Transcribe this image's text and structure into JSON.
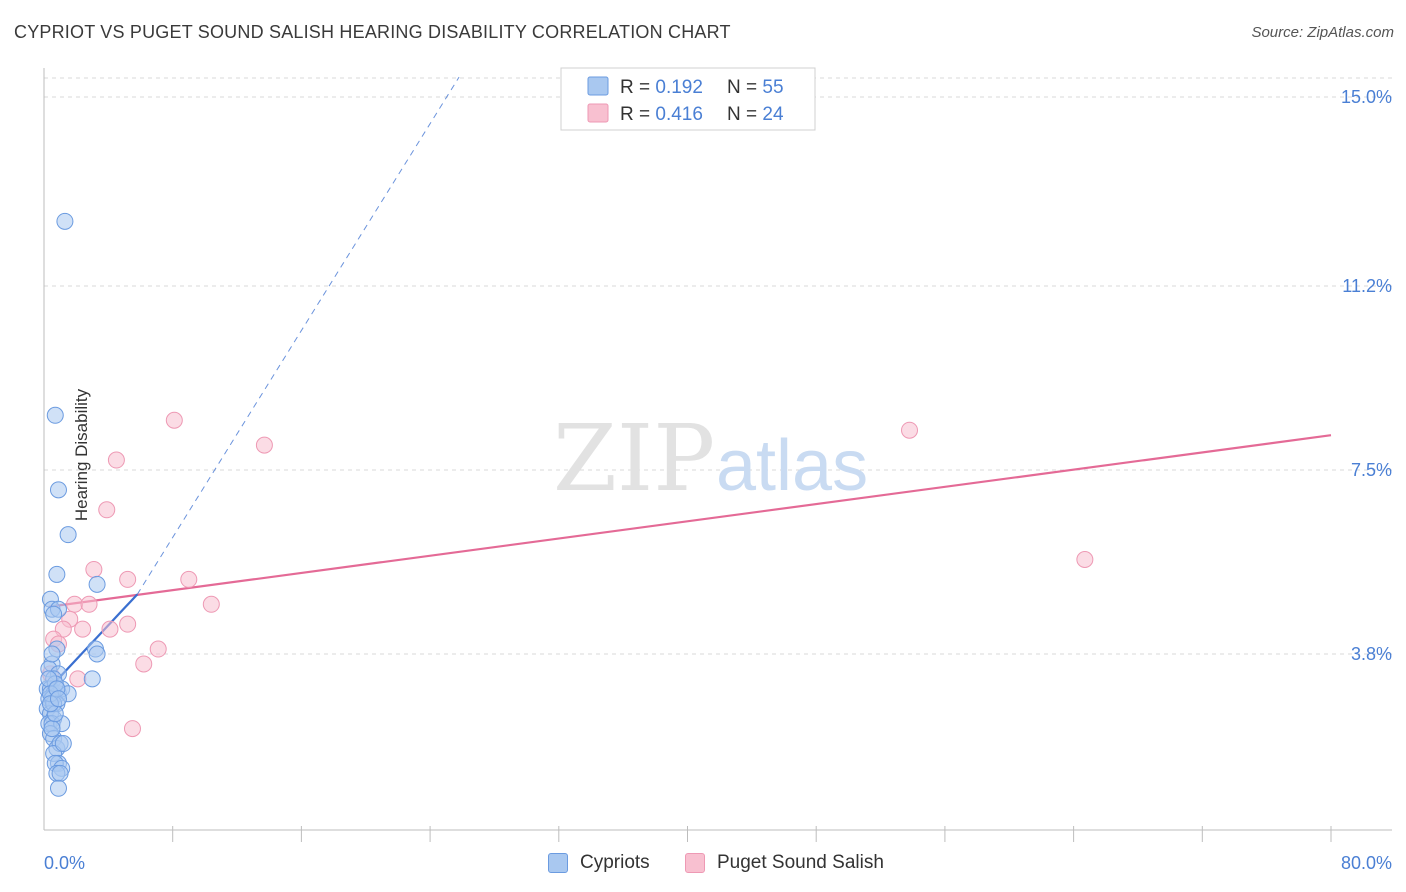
{
  "title": "CYPRIOT VS PUGET SOUND SALISH HEARING DISABILITY CORRELATION CHART",
  "source": "Source: ZipAtlas.com",
  "watermark": {
    "zip": "ZIP",
    "atlas": "atlas"
  },
  "legend_top": {
    "rows": [
      {
        "r_label": "R = ",
        "r_value": "0.192",
        "n_label": "N = ",
        "n_value": "55"
      },
      {
        "r_label": "R = ",
        "r_value": "0.416",
        "n_label": "N = ",
        "n_value": "24"
      }
    ]
  },
  "legend_bottom": {
    "items": [
      "Cypriots",
      "Puget Sound Salish"
    ]
  },
  "colors": {
    "cypriots_fill": "#a9c8f0",
    "cypriots_stroke": "#6b9be0",
    "cypriots_line": "#3a6fd0",
    "salish_fill": "#f8c0d0",
    "salish_stroke": "#ee99b4",
    "salish_line": "#e46a96",
    "axis_text": "#4a7fd4",
    "grid": "#d8d8d8"
  },
  "chart_data": {
    "type": "scatter",
    "title": "CYPRIOT VS PUGET SOUND SALISH HEARING DISABILITY CORRELATION CHART",
    "xlabel": "",
    "ylabel": "Hearing Disability",
    "xlim": [
      0,
      80
    ],
    "ylim": [
      0,
      15.5
    ],
    "x_tick_labels": [
      "0.0%",
      "80.0%"
    ],
    "y_ticks": [
      3.8,
      7.5,
      11.2,
      15.0
    ],
    "y_tick_labels": [
      "3.8%",
      "7.5%",
      "11.2%",
      "15.0%"
    ],
    "grid": true,
    "legend_position": "top-center",
    "series": [
      {
        "name": "Cypriots",
        "R": 0.192,
        "N": 55,
        "trend": {
          "x0": 0.3,
          "y0": 3.1,
          "x1": 5.8,
          "y1": 5.0,
          "solid_to_x": 5.8,
          "dashed_to": [
            25.8,
            15.4
          ]
        },
        "points": [
          [
            1.3,
            12.5
          ],
          [
            0.7,
            8.6
          ],
          [
            0.9,
            7.1
          ],
          [
            1.5,
            6.2
          ],
          [
            0.8,
            5.4
          ],
          [
            3.3,
            5.2
          ],
          [
            0.4,
            4.9
          ],
          [
            0.5,
            4.7
          ],
          [
            0.9,
            4.7
          ],
          [
            0.6,
            4.6
          ],
          [
            0.8,
            3.9
          ],
          [
            3.2,
            3.9
          ],
          [
            3.3,
            3.8
          ],
          [
            0.5,
            3.6
          ],
          [
            0.3,
            3.5
          ],
          [
            0.9,
            3.4
          ],
          [
            0.6,
            3.3
          ],
          [
            3.0,
            3.3
          ],
          [
            0.2,
            3.1
          ],
          [
            0.4,
            3.1
          ],
          [
            0.6,
            3.0
          ],
          [
            0.9,
            3.0
          ],
          [
            1.1,
            3.1
          ],
          [
            1.5,
            3.0
          ],
          [
            0.3,
            2.9
          ],
          [
            0.5,
            2.9
          ],
          [
            0.8,
            2.8
          ],
          [
            0.2,
            2.7
          ],
          [
            0.4,
            2.6
          ],
          [
            0.6,
            2.5
          ],
          [
            0.3,
            2.4
          ],
          [
            0.5,
            2.4
          ],
          [
            1.1,
            2.4
          ],
          [
            0.4,
            2.2
          ],
          [
            0.6,
            2.1
          ],
          [
            0.8,
            1.9
          ],
          [
            1.0,
            2.0
          ],
          [
            0.6,
            1.8
          ],
          [
            0.9,
            1.6
          ],
          [
            0.7,
            1.6
          ],
          [
            1.1,
            1.5
          ],
          [
            0.8,
            1.4
          ],
          [
            1.0,
            1.4
          ],
          [
            0.9,
            1.1
          ],
          [
            0.5,
            3.8
          ],
          [
            0.7,
            3.2
          ],
          [
            0.3,
            3.3
          ],
          [
            0.6,
            2.8
          ],
          [
            0.4,
            3.0
          ],
          [
            0.8,
            3.1
          ],
          [
            0.5,
            2.3
          ],
          [
            0.7,
            2.6
          ],
          [
            0.4,
            2.8
          ],
          [
            0.9,
            2.9
          ],
          [
            1.2,
            2.0
          ]
        ]
      },
      {
        "name": "Puget Sound Salish",
        "R": 0.416,
        "N": 24,
        "trend": {
          "x0": 0.3,
          "y0": 4.75,
          "x1": 80,
          "y1": 8.2
        },
        "points": [
          [
            8.1,
            8.5
          ],
          [
            13.7,
            8.0
          ],
          [
            4.5,
            7.7
          ],
          [
            3.9,
            6.7
          ],
          [
            53.8,
            8.3
          ],
          [
            64.7,
            5.7
          ],
          [
            3.1,
            5.5
          ],
          [
            5.2,
            5.3
          ],
          [
            9.0,
            5.3
          ],
          [
            10.4,
            4.8
          ],
          [
            1.9,
            4.8
          ],
          [
            2.8,
            4.8
          ],
          [
            1.6,
            4.5
          ],
          [
            2.4,
            4.3
          ],
          [
            4.1,
            4.3
          ],
          [
            5.2,
            4.4
          ],
          [
            1.2,
            4.3
          ],
          [
            0.6,
            4.1
          ],
          [
            0.9,
            4.0
          ],
          [
            7.1,
            3.9
          ],
          [
            6.2,
            3.6
          ],
          [
            2.1,
            3.3
          ],
          [
            5.5,
            2.3
          ],
          [
            0.4,
            3.4
          ]
        ]
      }
    ]
  }
}
